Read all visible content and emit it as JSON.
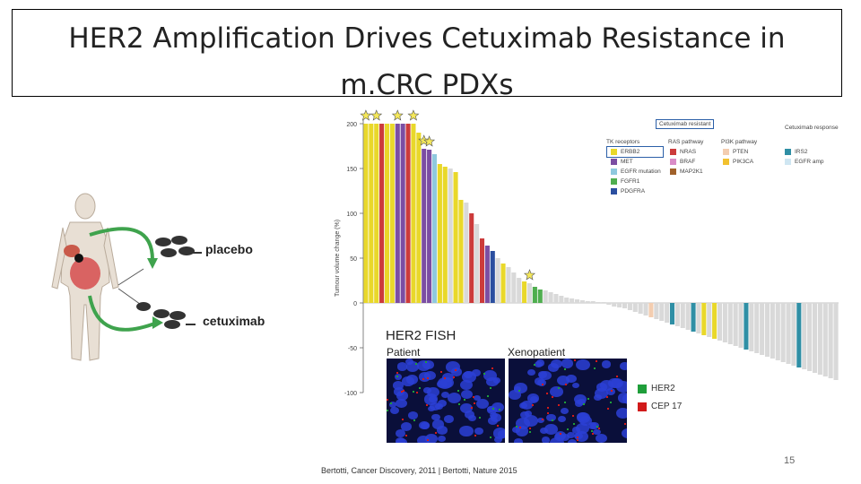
{
  "title": "HER2 Amplification Drives Cetuximab Resistance in m.CRC PDXs",
  "title_line1": "HER2 Amplification Drives Cetuximab Resistance in",
  "title_line2": "m.CRC PDXs",
  "left_panel": {
    "placebo_label": "placebo",
    "cetuximab_label": "cetuximab"
  },
  "chart_data": {
    "type": "bar",
    "ylabel": "Tumour volume change (%)",
    "yticks": [
      200,
      150,
      100,
      50,
      0,
      -50,
      -100
    ],
    "ylim": [
      -100,
      200
    ],
    "values": [
      200,
      200,
      200,
      200,
      200,
      200,
      200,
      200,
      200,
      200,
      190,
      172,
      171,
      166,
      155,
      152,
      150,
      146,
      115,
      112,
      100,
      88,
      72,
      64,
      58,
      50,
      44,
      40,
      34,
      28,
      24,
      22,
      18,
      15,
      14,
      12,
      10,
      8,
      6,
      5,
      4,
      3,
      2,
      2,
      1,
      1,
      -2,
      -4,
      -5,
      -6,
      -8,
      -10,
      -12,
      -14,
      -16,
      -18,
      -20,
      -22,
      -24,
      -26,
      -28,
      -30,
      -32,
      -34,
      -36,
      -38,
      -40,
      -42,
      -44,
      -46,
      -48,
      -50,
      -52,
      -54,
      -56,
      -58,
      -60,
      -62,
      -64,
      -66,
      -68,
      -70,
      -72,
      -74,
      -76,
      -78,
      -80,
      -82,
      -84,
      -86
    ],
    "bar_colors": [
      "#e9d82a",
      "#e9d82a",
      "#e9d82a",
      "#cc3b3b",
      "#e9d82a",
      "#e9d82a",
      "#7b4ea3",
      "#7b4ea3",
      "#cc3b3b",
      "#e9d82a",
      "#e9d82a",
      "#7b4ea3",
      "#7b4ea3",
      "#8fc9de",
      "#e9d82a",
      "#e9d82a",
      "#d9d9d9",
      "#e9d82a",
      "#e9d82a",
      "#d9d9d9",
      "#cc3b3b",
      "#d9d9d9",
      "#cc3b3b",
      "#7b4ea3",
      "#2b4fa0",
      "#d9d9d9",
      "#e9d82a",
      "#d9d9d9",
      "#d9d9d9",
      "#d9d9d9",
      "#e9d82a",
      "#d9d9d9",
      "#4fae4f",
      "#4fae4f",
      "#d9d9d9",
      "#d9d9d9",
      "#d9d9d9",
      "#d9d9d9",
      "#d9d9d9",
      "#d9d9d9",
      "#d9d9d9",
      "#d9d9d9",
      "#d9d9d9",
      "#d9d9d9",
      "#d9d9d9",
      "#d9d9d9",
      "#d9d9d9",
      "#d9d9d9",
      "#d9d9d9",
      "#d9d9d9",
      "#d9d9d9",
      "#d9d9d9",
      "#d9d9d9",
      "#d9d9d9",
      "#f3cdb0",
      "#d9d9d9",
      "#d9d9d9",
      "#d9d9d9",
      "#2f8fa5",
      "#d9d9d9",
      "#d9d9d9",
      "#d9d9d9",
      "#2f8fa5",
      "#d9d9d9",
      "#e9d82a",
      "#d9d9d9",
      "#e9d82a",
      "#d9d9d9",
      "#d9d9d9",
      "#d9d9d9",
      "#d9d9d9",
      "#d9d9d9",
      "#2f8fa5",
      "#d9d9d9",
      "#d9d9d9",
      "#d9d9d9",
      "#d9d9d9",
      "#d9d9d9",
      "#d9d9d9",
      "#d9d9d9",
      "#d9d9d9",
      "#d9d9d9",
      "#2f8fa5",
      "#d9d9d9",
      "#d9d9d9",
      "#d9d9d9",
      "#d9d9d9",
      "#d9d9d9",
      "#d9d9d9",
      "#d9d9d9"
    ],
    "star_indices": [
      0,
      2,
      6,
      9,
      11,
      12,
      31
    ],
    "legend": {
      "resistant_box": "Cetuximab resistant",
      "tk_header": "TK receptors",
      "tk_items": [
        {
          "label": "ERBB2",
          "color": "#e9d82a"
        },
        {
          "label": "MET",
          "color": "#7b4ea3"
        },
        {
          "label": "EGFR mutation",
          "color": "#8fc9de"
        },
        {
          "label": "FGFR1",
          "color": "#4fae4f"
        },
        {
          "label": "PDGFRA",
          "color": "#2b4fa0"
        }
      ],
      "ras_header": "RAS pathway",
      "ras_items": [
        {
          "label": "NRAS",
          "color": "#cc3b3b"
        },
        {
          "label": "BRAF",
          "color": "#d98cc6"
        },
        {
          "label": "MAP2K1",
          "color": "#a0612a"
        }
      ],
      "pi3k_header": "PI3K pathway",
      "pi3k_items": [
        {
          "label": "PTEN",
          "color": "#f3cdb0"
        },
        {
          "label": "PIK3CA",
          "color": "#f2c12e"
        }
      ],
      "resp_header": "Cetuximab response",
      "resp_items": [
        {
          "label": "IRS2",
          "color": "#2f8fa5"
        },
        {
          "label": "EGFR amp",
          "color": "#cfe6f2"
        }
      ]
    }
  },
  "fish": {
    "title": "HER2 FISH",
    "patient": "Patient",
    "xenopatient": "Xenopatient",
    "legend": [
      {
        "label": "HER2",
        "color": "#1f9e3a"
      },
      {
        "label": "CEP 17",
        "color": "#d11a1a"
      }
    ]
  },
  "citation": "Bertotti, Cancer Discovery, 2011 | Bertotti, Nature 2015",
  "page_number": "15"
}
